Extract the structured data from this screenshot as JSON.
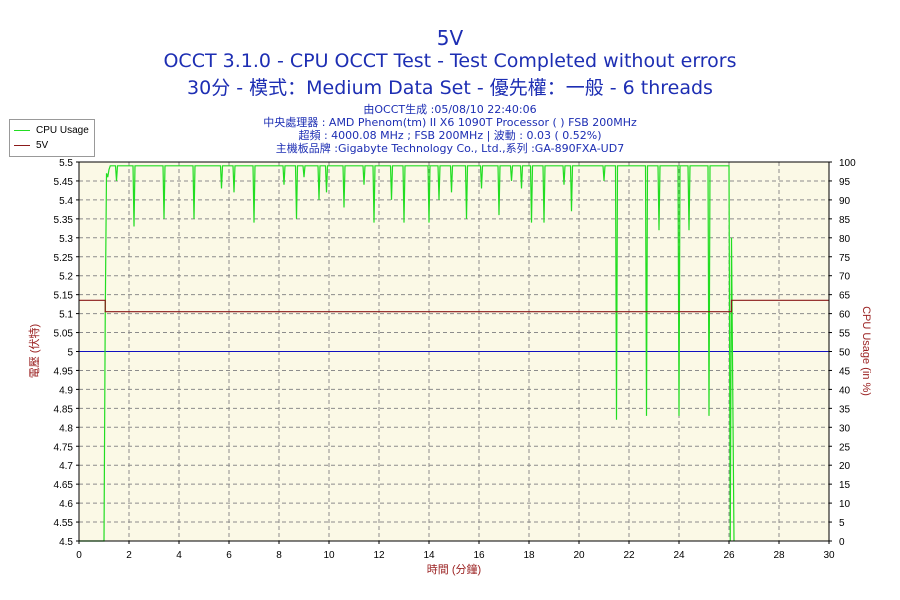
{
  "title": "5V",
  "subtitle1": "OCCT 3.1.0 - CPU OCCT Test - Test Completed without errors",
  "subtitle2": "30分 - 模式：Medium Data Set - 優先權：一般 - 6 threads",
  "info_lines": [
    "由OCCT生成 :05/08/10 22:40:06",
    "中央處理器 : AMD Phenom(tm) II X6 1090T Processor (  ) FSB 200MHz",
    "超頻 : 4000.08 MHz ; FSB 200MHz | 波動 : 0.03 ( 0.52%)",
    "主機板品牌 :Gigabyte Technology Co., Ltd.,系列 :GA-890FXA-UD7"
  ],
  "colors": {
    "title": "#1d2eb3",
    "plot_bg": "#fbf9e6",
    "grid": "#8c8c8c",
    "cpu_usage": "#22dd22",
    "voltage": "#8b1a1a",
    "ref_line": "#1010c0",
    "axis_label_left": "#9b2222",
    "axis_label_right": "#9b2222"
  },
  "legend": {
    "cpu_usage": "CPU Usage",
    "voltage": "5V"
  },
  "chart_data": {
    "type": "line",
    "title": "5V",
    "xlabel": "時間 (分鐘)",
    "ylabel_left": "電壓 (伏特)",
    "ylabel_right": "CPU Usage (in %)",
    "xlim": [
      0,
      30
    ],
    "ylim_left": [
      4.5,
      5.5
    ],
    "ylim_right": [
      0,
      100
    ],
    "x_ticks": [
      0,
      2,
      4,
      6,
      8,
      10,
      12,
      14,
      16,
      18,
      20,
      22,
      24,
      26,
      28,
      30
    ],
    "y_ticks_left": [
      "4.5",
      "4.55",
      "4.6",
      "4.65",
      "4.7",
      "4.75",
      "4.8",
      "4.85",
      "4.9",
      "4.95",
      "5",
      "5.05",
      "5.1",
      "5.15",
      "5.2",
      "5.25",
      "5.3",
      "5.35",
      "5.4",
      "5.45",
      "5.5"
    ],
    "y_ticks_right": [
      0,
      5,
      10,
      15,
      20,
      25,
      30,
      35,
      40,
      45,
      50,
      55,
      60,
      65,
      70,
      75,
      80,
      85,
      90,
      95,
      100
    ],
    "grid": true,
    "legend_position": "top-left outside",
    "series": [
      {
        "name": "5V",
        "axis": "left",
        "x": [
          0,
          1.05,
          1.05,
          26.1,
          26.1,
          30
        ],
        "y": [
          5.135,
          5.135,
          5.105,
          5.105,
          5.135,
          5.135
        ]
      },
      {
        "name": "CPU Usage",
        "axis": "right",
        "baseline": 99,
        "x": [
          0,
          1.0,
          1.05,
          1.1,
          1.15,
          1.2,
          1.25,
          26.0,
          26.05,
          26.1,
          26.2
        ],
        "y": [
          0,
          0,
          60,
          97,
          96,
          98,
          99,
          99,
          0,
          80,
          0
        ],
        "dips": [
          [
            1.5,
            95
          ],
          [
            2.2,
            83
          ],
          [
            3.4,
            85
          ],
          [
            4.6,
            85
          ],
          [
            5.7,
            93
          ],
          [
            6.2,
            92
          ],
          [
            7.0,
            84
          ],
          [
            8.2,
            94
          ],
          [
            8.7,
            85
          ],
          [
            9.0,
            96
          ],
          [
            9.6,
            90
          ],
          [
            9.9,
            92
          ],
          [
            10.6,
            88
          ],
          [
            11.4,
            94
          ],
          [
            11.8,
            84
          ],
          [
            12.5,
            90
          ],
          [
            13.0,
            84
          ],
          [
            14.0,
            84
          ],
          [
            14.4,
            90
          ],
          [
            14.9,
            92
          ],
          [
            15.5,
            85
          ],
          [
            16.1,
            93
          ],
          [
            16.8,
            86
          ],
          [
            17.3,
            95
          ],
          [
            17.7,
            93
          ],
          [
            18.1,
            84
          ],
          [
            18.6,
            84
          ],
          [
            19.4,
            94
          ],
          [
            19.7,
            87
          ],
          [
            21.0,
            95
          ],
          [
            21.5,
            32
          ],
          [
            22.7,
            33
          ],
          [
            23.2,
            82
          ],
          [
            24.0,
            33
          ],
          [
            24.4,
            82
          ],
          [
            25.2,
            33
          ]
        ]
      },
      {
        "name": "",
        "axis": "left",
        "x": [
          0,
          30
        ],
        "y": [
          5.0,
          5.0
        ]
      }
    ]
  }
}
